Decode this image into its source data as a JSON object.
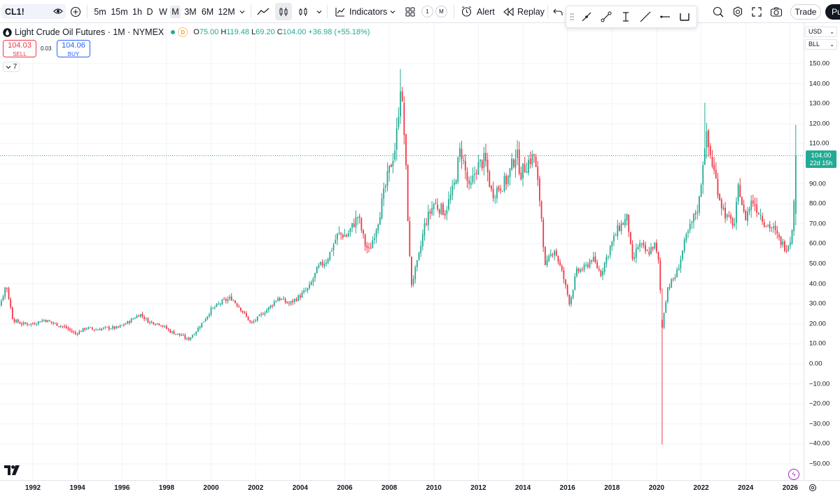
{
  "toolbar": {
    "symbol": "CL1!",
    "intervals": [
      "5m",
      "15m",
      "1h",
      "D",
      "W",
      "M",
      "3M",
      "6M",
      "12M"
    ],
    "active_interval": "M",
    "indicators_label": "Indicators",
    "layout_badge": "1",
    "layout_badge_m": "M",
    "alert_label": "Alert",
    "replay_label": "Replay",
    "trade_label": "Trade",
    "publish_label": "Pu"
  },
  "legend": {
    "title": "Light Crude Oil Futures · 1M · NYMEX",
    "session_badge": "D",
    "open_key": "O",
    "open": "75.00",
    "high_key": "H",
    "high": "119.48",
    "low_key": "L",
    "low": "69.20",
    "close_key": "C",
    "close": "104.00",
    "change": "+36.98 (+55.18%)",
    "sell_price": "104.03",
    "sell_label": "SELL",
    "spread": "0.03",
    "buy_price": "104.06",
    "buy_label": "BUY",
    "collapse_count": "7"
  },
  "scale": {
    "currency": "USD",
    "unit": "BLL",
    "current_price": "104.00",
    "countdown": "22d 15h"
  },
  "colors": {
    "up": "#22ab94",
    "down": "#f23645",
    "grid": "#f0f3fa",
    "accent": "#2962ff"
  },
  "chart_data": {
    "type": "candlestick",
    "ylim": [
      -55,
      155
    ],
    "y_ticks": [
      "150.00",
      "140.00",
      "130.00",
      "120.00",
      "110.00",
      "100.00",
      "90.00",
      "80.00",
      "70.00",
      "60.00",
      "50.00",
      "40.00",
      "30.00",
      "20.00",
      "10.00",
      "0.00",
      "−10.00",
      "−20.00",
      "−30.00",
      "−40.00",
      "−50.00"
    ],
    "x_ticks": [
      "1992",
      "1994",
      "1996",
      "1998",
      "2000",
      "2002",
      "2004",
      "2006",
      "2008",
      "2010",
      "2012",
      "2014",
      "2016",
      "2018",
      "2020",
      "2022",
      "2024",
      "2026"
    ],
    "current_price": 104.0,
    "series": [
      [
        1990.0,
        20
      ],
      [
        1990.6,
        32
      ],
      [
        1990.8,
        40
      ],
      [
        1991.1,
        22
      ],
      [
        1991.5,
        20
      ],
      [
        1992.0,
        20
      ],
      [
        1992.5,
        22
      ],
      [
        1993.0,
        20
      ],
      [
        1993.5,
        18
      ],
      [
        1993.9,
        15
      ],
      [
        1994.4,
        18
      ],
      [
        1994.8,
        17
      ],
      [
        1995.3,
        18
      ],
      [
        1995.8,
        18
      ],
      [
        1996.3,
        21
      ],
      [
        1996.8,
        25
      ],
      [
        1997.2,
        21
      ],
      [
        1997.7,
        20
      ],
      [
        1998.2,
        16
      ],
      [
        1998.7,
        14
      ],
      [
        1998.95,
        12
      ],
      [
        1999.3,
        16
      ],
      [
        1999.7,
        22
      ],
      [
        2000.0,
        27
      ],
      [
        2000.5,
        31
      ],
      [
        2000.9,
        33
      ],
      [
        2001.3,
        28
      ],
      [
        2001.8,
        20
      ],
      [
        2002.2,
        24
      ],
      [
        2002.6,
        28
      ],
      [
        2003.0,
        33
      ],
      [
        2003.5,
        30
      ],
      [
        2004.0,
        34
      ],
      [
        2004.4,
        38
      ],
      [
        2004.8,
        48
      ],
      [
        2005.2,
        52
      ],
      [
        2005.7,
        65
      ],
      [
        2006.1,
        64
      ],
      [
        2006.6,
        74
      ],
      [
        2006.9,
        60
      ],
      [
        2007.1,
        56
      ],
      [
        2007.5,
        72
      ],
      [
        2007.9,
        92
      ],
      [
        2008.3,
        110
      ],
      [
        2008.5,
        140
      ],
      [
        2008.7,
        110
      ],
      [
        2008.9,
        55
      ],
      [
        2009.0,
        40
      ],
      [
        2009.3,
        52
      ],
      [
        2009.6,
        70
      ],
      [
        2010.0,
        80
      ],
      [
        2010.5,
        76
      ],
      [
        2010.9,
        88
      ],
      [
        2011.2,
        108
      ],
      [
        2011.6,
        86
      ],
      [
        2011.9,
        98
      ],
      [
        2012.3,
        102
      ],
      [
        2012.6,
        85
      ],
      [
        2012.9,
        88
      ],
      [
        2013.3,
        92
      ],
      [
        2013.7,
        106
      ],
      [
        2013.9,
        95
      ],
      [
        2014.3,
        102
      ],
      [
        2014.5,
        104
      ],
      [
        2014.8,
        78
      ],
      [
        2015.0,
        48
      ],
      [
        2015.4,
        58
      ],
      [
        2015.8,
        44
      ],
      [
        2016.1,
        30
      ],
      [
        2016.4,
        46
      ],
      [
        2016.8,
        48
      ],
      [
        2017.1,
        53
      ],
      [
        2017.5,
        45
      ],
      [
        2017.9,
        58
      ],
      [
        2018.3,
        68
      ],
      [
        2018.7,
        73
      ],
      [
        2018.9,
        50
      ],
      [
        2019.2,
        60
      ],
      [
        2019.6,
        55
      ],
      [
        2019.9,
        60
      ],
      [
        2020.1,
        50
      ],
      [
        2020.25,
        20
      ],
      [
        2020.5,
        38
      ],
      [
        2020.9,
        45
      ],
      [
        2021.3,
        62
      ],
      [
        2021.7,
        74
      ],
      [
        2021.9,
        80
      ],
      [
        2022.2,
        115
      ],
      [
        2022.4,
        105
      ],
      [
        2022.7,
        90
      ],
      [
        2022.9,
        80
      ],
      [
        2023.2,
        72
      ],
      [
        2023.5,
        70
      ],
      [
        2023.7,
        90
      ],
      [
        2023.95,
        72
      ],
      [
        2024.3,
        82
      ],
      [
        2024.6,
        76
      ],
      [
        2024.9,
        70
      ],
      [
        2025.2,
        68
      ],
      [
        2025.5,
        62
      ],
      [
        2025.8,
        58
      ],
      [
        2026.0,
        62
      ],
      [
        2026.15,
        75
      ],
      [
        2026.25,
        104
      ]
    ]
  }
}
